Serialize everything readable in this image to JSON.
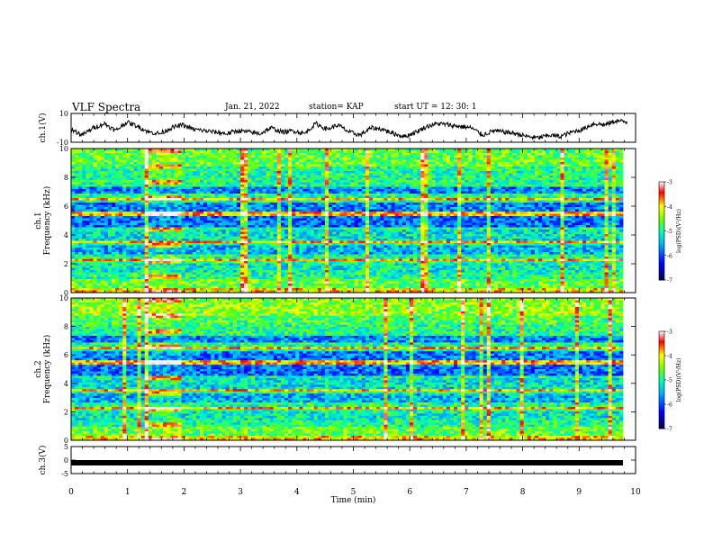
{
  "header": {
    "title": "VLF Spectra",
    "date": "Jan. 21, 2022",
    "station": "station= KAP",
    "start": "start  UT =   12: 30: 1"
  },
  "chart_data": [
    {
      "type": "line",
      "ylabel": "ch.1(V)",
      "ylim": [
        -10,
        10
      ],
      "yticks": [
        "10",
        "-10"
      ],
      "xlim": [
        0,
        10
      ],
      "series": [
        {
          "values_description_excluded": true
        }
      ],
      "trace_profile": [
        -1,
        -5,
        0,
        3,
        -2,
        4,
        1,
        -3,
        -4,
        0,
        2,
        -1,
        -2,
        -3,
        -4,
        -2,
        -3,
        -4,
        0,
        -3,
        -2,
        -4,
        3,
        -1,
        2,
        -3,
        -5,
        0,
        -1,
        -4,
        -6,
        -3,
        1,
        3,
        2,
        1,
        0,
        -5,
        -2,
        -3,
        -4,
        -6,
        -7,
        -5,
        -6,
        -3,
        -1,
        3,
        2,
        5,
        4
      ]
    },
    {
      "type": "heatmap",
      "ylabel": "ch.1\nFrequency (kHz)",
      "ylim": [
        0,
        10
      ],
      "yticks": [
        "10",
        "8",
        "6",
        "4",
        "2",
        "0"
      ],
      "xlim": [
        0,
        10
      ],
      "colorbar": {
        "min": -7,
        "max": -3,
        "ticks": [
          "-3",
          "-4",
          "-5",
          "-6",
          "-7"
        ],
        "label": "log(PSD)(V²/Hz)"
      }
    },
    {
      "type": "heatmap",
      "ylabel": "ch.2\nFrequency (kHz)",
      "ylim": [
        0,
        10
      ],
      "yticks": [
        "10",
        "8",
        "6",
        "4",
        "2",
        "0"
      ],
      "xlim": [
        0,
        10
      ],
      "colorbar": {
        "min": -7,
        "max": -3,
        "ticks": [
          "-3",
          "-4",
          "-5",
          "-6",
          "-7"
        ],
        "label": "log(PSD)(V²/Hz)"
      }
    },
    {
      "type": "line",
      "ylabel": "ch.3(V)",
      "ylim": [
        -5,
        5
      ],
      "yticks": [
        "5",
        "0",
        "-5"
      ],
      "xlim": [
        0,
        10
      ],
      "xlabel": "Time  (min)",
      "xticks": [
        "0",
        "1",
        "2",
        "3",
        "4",
        "5",
        "6",
        "7",
        "8",
        "9",
        "10"
      ],
      "trace_level": -1
    }
  ],
  "colors": {
    "spectrum_scale": [
      "#00004a",
      "#0000ff",
      "#00b4ff",
      "#00ffb4",
      "#6cff00",
      "#ffff00",
      "#ff0000",
      "#ffffff"
    ]
  }
}
